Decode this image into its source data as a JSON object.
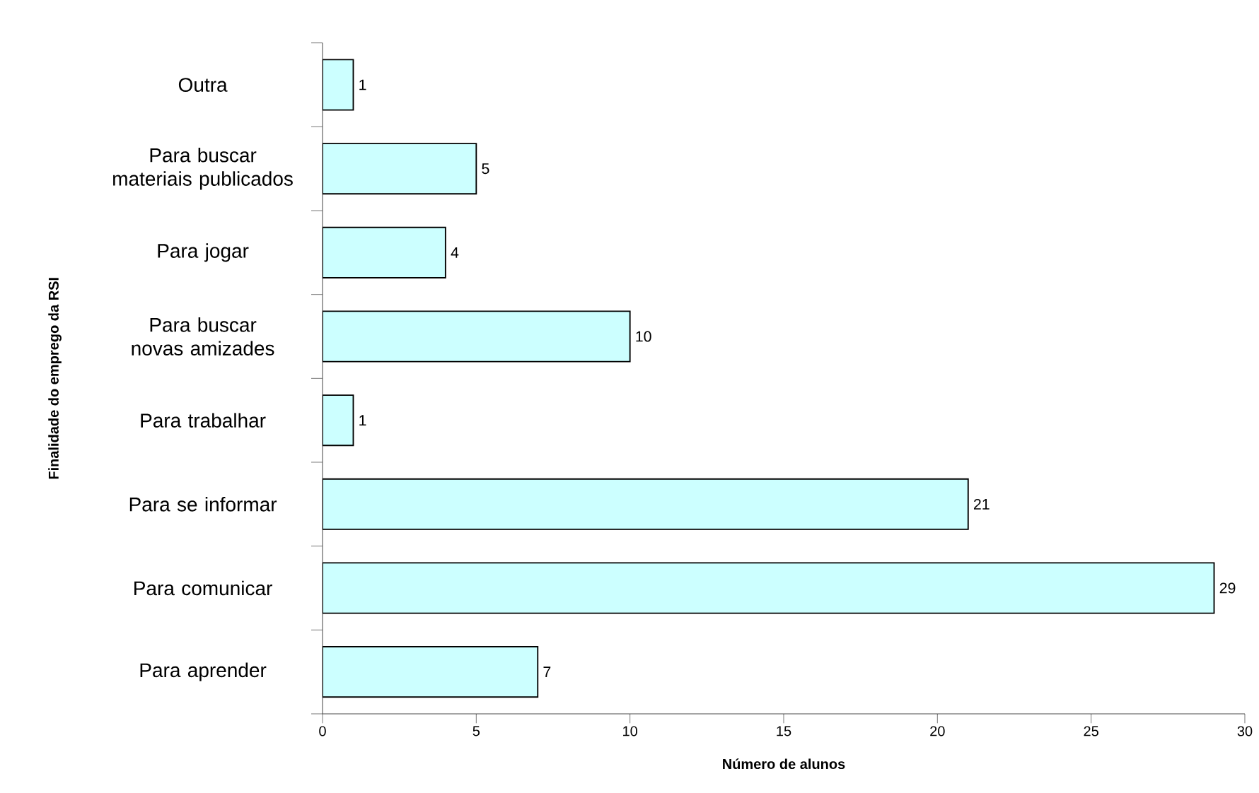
{
  "chart_data": {
    "type": "bar",
    "orientation": "horizontal",
    "categories": [
      "Outra",
      "Para buscar materiais publicados",
      "Para jogar",
      "Para buscar novas amizades",
      "Para trabalhar",
      "Para se informar",
      "Para comunicar",
      "Para aprender"
    ],
    "values": [
      1,
      5,
      4,
      10,
      1,
      21,
      29,
      7
    ],
    "color": "#ccffff",
    "xlim": [
      0,
      30
    ],
    "xticks": [
      0,
      5,
      10,
      15,
      20,
      25,
      30
    ],
    "xlabel": "Número de alunos",
    "ylabel": "Finalidade do emprego da RSI",
    "data_labels": true
  }
}
